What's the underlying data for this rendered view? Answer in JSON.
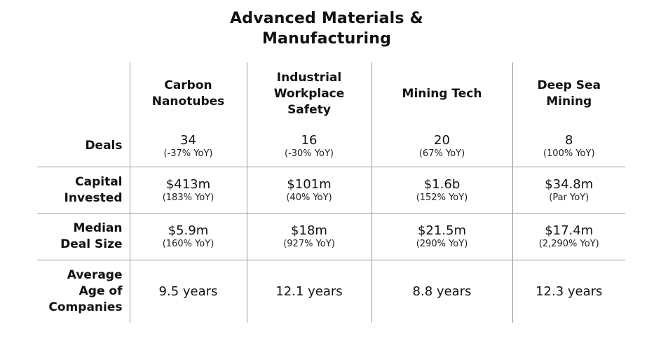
{
  "title": {
    "line1": "Advanced Materials &",
    "line2": "Manufacturing"
  },
  "columns": [
    {
      "lines": [
        "Carbon",
        "Nanotubes"
      ]
    },
    {
      "lines": [
        "Industrial",
        "Workplace",
        "Safety"
      ]
    },
    {
      "lines": [
        "Mining Tech"
      ]
    },
    {
      "lines": [
        "Deep Sea Mining"
      ]
    }
  ],
  "rows": {
    "deals": {
      "label": [
        "Deals"
      ],
      "cells": [
        {
          "value": "34",
          "yoy": "(-37% YoY)"
        },
        {
          "value": "16",
          "yoy": "(-30% YoY)"
        },
        {
          "value": "20",
          "yoy": "(67% YoY)"
        },
        {
          "value": "8",
          "yoy": "(100% YoY)"
        }
      ]
    },
    "capital": {
      "label": [
        "Capital",
        "Invested"
      ],
      "cells": [
        {
          "value": "$413m",
          "yoy": "(183% YoY)"
        },
        {
          "value": "$101m",
          "yoy": "(40% YoY)"
        },
        {
          "value": "$1.6b",
          "yoy": "(152% YoY)"
        },
        {
          "value": "$34.8m",
          "yoy": "(Par YoY)"
        }
      ]
    },
    "median": {
      "label": [
        "Median",
        "Deal Size"
      ],
      "cells": [
        {
          "value": "$5.9m",
          "yoy": "(160% YoY)"
        },
        {
          "value": "$18m",
          "yoy": "(927% YoY)"
        },
        {
          "value": "$21.5m",
          "yoy": "(290% YoY)"
        },
        {
          "value": "$17.4m",
          "yoy": "(2,290% YoY)"
        }
      ]
    },
    "age": {
      "label": [
        "Average",
        "Age of",
        "Companies"
      ],
      "cells": [
        {
          "value": "9.5 years"
        },
        {
          "value": "12.1 years"
        },
        {
          "value": "8.8 years"
        },
        {
          "value": "12.3 years"
        }
      ]
    }
  }
}
